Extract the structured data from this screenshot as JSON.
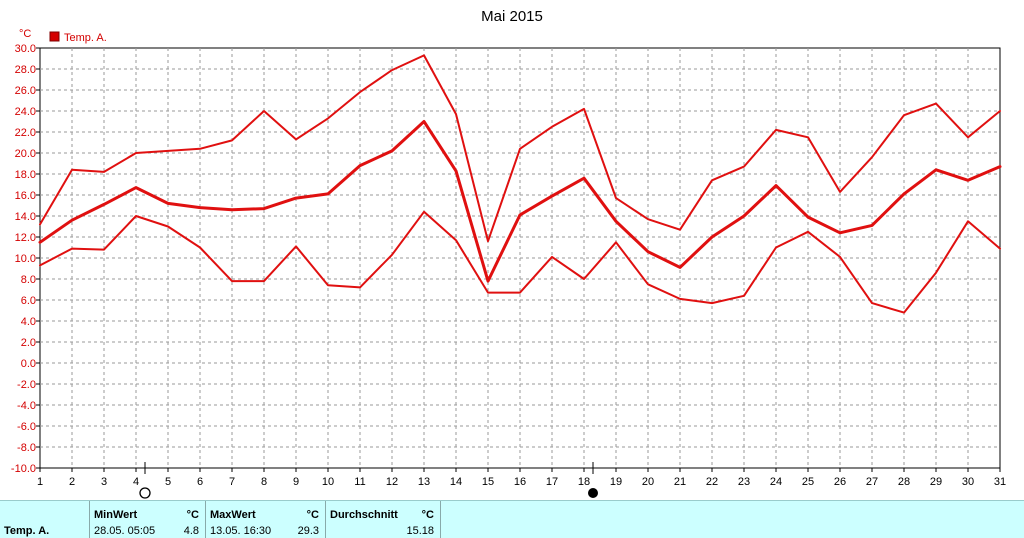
{
  "chart_data": {
    "type": "line",
    "title": "Mai 2015",
    "ylabel": "°C",
    "xlabel": "",
    "ylim": [
      -10,
      30
    ],
    "yticks": [
      "30.0",
      "28.0",
      "26.0",
      "24.0",
      "22.0",
      "20.0",
      "18.0",
      "16.0",
      "14.0",
      "12.0",
      "10.0",
      "8.0",
      "6.0",
      "4.0",
      "2.0",
      "0.0",
      "-2.0",
      "-4.0",
      "-6.0",
      "-8.0",
      "-10.0"
    ],
    "ytick_values": [
      30,
      28,
      26,
      24,
      22,
      20,
      18,
      16,
      14,
      12,
      10,
      8,
      6,
      4,
      2,
      0,
      -2,
      -4,
      -6,
      -8,
      -10
    ],
    "x": [
      "1",
      "2",
      "3",
      "4",
      "5",
      "6",
      "7",
      "8",
      "9",
      "10",
      "11",
      "12",
      "13",
      "14",
      "15",
      "16",
      "17",
      "18",
      "19",
      "20",
      "21",
      "22",
      "23",
      "24",
      "25",
      "26",
      "27",
      "28",
      "29",
      "30",
      "31"
    ],
    "grid": true,
    "legend": {
      "position": "top-left",
      "label": "Temp. A.",
      "color": "#d40000"
    },
    "series_color": "#e01010",
    "series": [
      {
        "values": [
          13.2,
          18.4,
          18.2,
          20.0,
          20.2,
          20.4,
          21.2,
          24.0,
          21.3,
          23.3,
          25.8,
          27.9,
          29.3,
          23.7,
          11.6,
          20.4,
          22.5,
          24.2,
          15.7,
          13.7,
          12.7,
          17.4,
          18.7,
          22.2,
          21.5,
          16.3,
          19.6,
          23.6,
          24.7,
          21.5,
          24.0
        ]
      },
      {
        "values": [
          11.5,
          13.6,
          15.1,
          16.7,
          15.2,
          14.8,
          14.6,
          14.7,
          15.7,
          16.1,
          18.8,
          20.2,
          23.0,
          18.3,
          7.8,
          14.1,
          15.9,
          17.6,
          13.5,
          10.6,
          9.1,
          12.0,
          14.0,
          16.9,
          13.9,
          12.4,
          13.1,
          16.1,
          18.4,
          17.4,
          18.7
        ],
        "bold": true
      },
      {
        "values": [
          9.3,
          10.9,
          10.8,
          14.0,
          13.0,
          11.0,
          7.8,
          7.8,
          11.1,
          7.4,
          7.2,
          10.3,
          14.4,
          11.7,
          6.7,
          6.7,
          10.1,
          8.0,
          11.5,
          7.5,
          6.1,
          5.7,
          6.4,
          11.0,
          12.5,
          10.1,
          5.7,
          4.8,
          8.6,
          13.5,
          10.9
        ]
      }
    ],
    "markers": [
      {
        "day": 4,
        "kind": "min",
        "symbol": "empty-circle"
      },
      {
        "day": 18,
        "kind": "max",
        "symbol": "filled-circle"
      }
    ]
  },
  "stats": {
    "sensor_label": "Temp. A.",
    "min": {
      "header": "MinWert",
      "unit": "°C",
      "datetime": "28.05.  05:05",
      "value": "4.8"
    },
    "max": {
      "header": "MaxWert",
      "unit": "°C",
      "datetime": "13.05.  16:30",
      "value": "29.3"
    },
    "avg": {
      "header": "Durchschnitt",
      "unit": "°C",
      "value": "15.18"
    }
  }
}
